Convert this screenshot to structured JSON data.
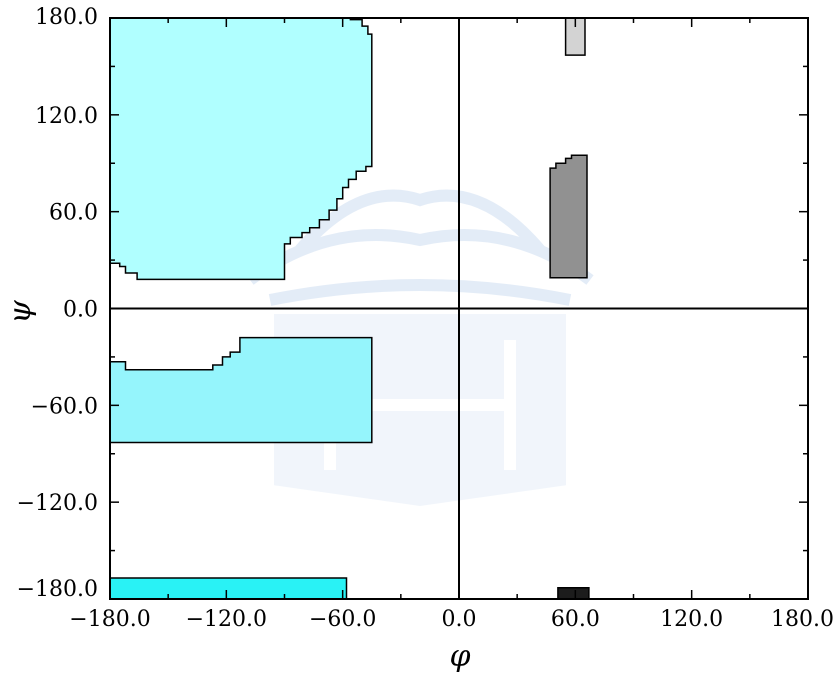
{
  "chart_data": {
    "type": "scatter",
    "title": "",
    "xlabel": "φ",
    "ylabel": "ψ",
    "xlim": [
      -180,
      180
    ],
    "ylim": [
      -180,
      180
    ],
    "x_ticks": [
      -180,
      -120,
      -60,
      0,
      60,
      120,
      180
    ],
    "y_ticks": [
      -180,
      -120,
      -60,
      0,
      60,
      120,
      180
    ],
    "x_tick_labels": [
      "−180.0",
      "−120.0",
      "−60.0",
      "0.0",
      "60.0",
      "120.0",
      "180.0"
    ],
    "y_tick_labels": [
      "−180.0",
      "−120.0",
      "−60.0",
      "0.0",
      "60.0",
      "120.0",
      "180.0"
    ],
    "grid": false,
    "zero_lines": true,
    "regions": [
      {
        "id": "upper-left",
        "fill": "#b0ffff",
        "points": [
          [
            -180,
            180
          ],
          [
            -56,
            180
          ],
          [
            -56,
            179
          ],
          [
            -50,
            179
          ],
          [
            -50,
            175
          ],
          [
            -47,
            175
          ],
          [
            -47,
            170
          ],
          [
            -45,
            170
          ],
          [
            -45,
            88
          ],
          [
            -48,
            88
          ],
          [
            -48,
            85
          ],
          [
            -53,
            85
          ],
          [
            -53,
            80
          ],
          [
            -57,
            80
          ],
          [
            -57,
            75
          ],
          [
            -60,
            75
          ],
          [
            -60,
            68
          ],
          [
            -63,
            68
          ],
          [
            -63,
            61
          ],
          [
            -67,
            61
          ],
          [
            -67,
            55
          ],
          [
            -72,
            55
          ],
          [
            -72,
            50
          ],
          [
            -77,
            50
          ],
          [
            -77,
            47
          ],
          [
            -81,
            47
          ],
          [
            -81,
            44
          ],
          [
            -87,
            44
          ],
          [
            -87,
            40
          ],
          [
            -90,
            40
          ],
          [
            -90,
            18
          ],
          [
            -166,
            18
          ],
          [
            -166,
            22
          ],
          [
            -172,
            22
          ],
          [
            -172,
            26
          ],
          [
            -175,
            26
          ],
          [
            -175,
            28
          ],
          [
            -180,
            28
          ]
        ]
      },
      {
        "id": "middle-left",
        "fill": "#95f5fc",
        "points": [
          [
            -180,
            -33
          ],
          [
            -172,
            -33
          ],
          [
            -172,
            -38
          ],
          [
            -127,
            -38
          ],
          [
            -127,
            -35
          ],
          [
            -122,
            -35
          ],
          [
            -122,
            -30
          ],
          [
            -118,
            -30
          ],
          [
            -118,
            -27
          ],
          [
            -113,
            -27
          ],
          [
            -113,
            -18
          ],
          [
            -45,
            -18
          ],
          [
            -45,
            -83
          ],
          [
            -180,
            -83
          ]
        ]
      },
      {
        "id": "bottom-left-bar",
        "fill": "#29f2f5",
        "points": [
          [
            -180,
            -167
          ],
          [
            -58,
            -167
          ],
          [
            -58,
            -180
          ],
          [
            -180,
            -180
          ]
        ]
      },
      {
        "id": "grey-right",
        "fill": "#919191",
        "points": [
          [
            47,
            87
          ],
          [
            50,
            87
          ],
          [
            50,
            90
          ],
          [
            55,
            90
          ],
          [
            55,
            93
          ],
          [
            58,
            93
          ],
          [
            58,
            95
          ],
          [
            66,
            95
          ],
          [
            66,
            19
          ],
          [
            47,
            19
          ]
        ]
      },
      {
        "id": "light-grey-top",
        "fill": "#d3d3d3",
        "points": [
          [
            55,
            180
          ],
          [
            65,
            180
          ],
          [
            65,
            157
          ],
          [
            55,
            157
          ]
        ]
      },
      {
        "id": "black-bottom",
        "fill": "#1c1c1c",
        "points": [
          [
            51,
            -173
          ],
          [
            67,
            -173
          ],
          [
            67,
            -180
          ],
          [
            51,
            -180
          ]
        ]
      }
    ]
  }
}
